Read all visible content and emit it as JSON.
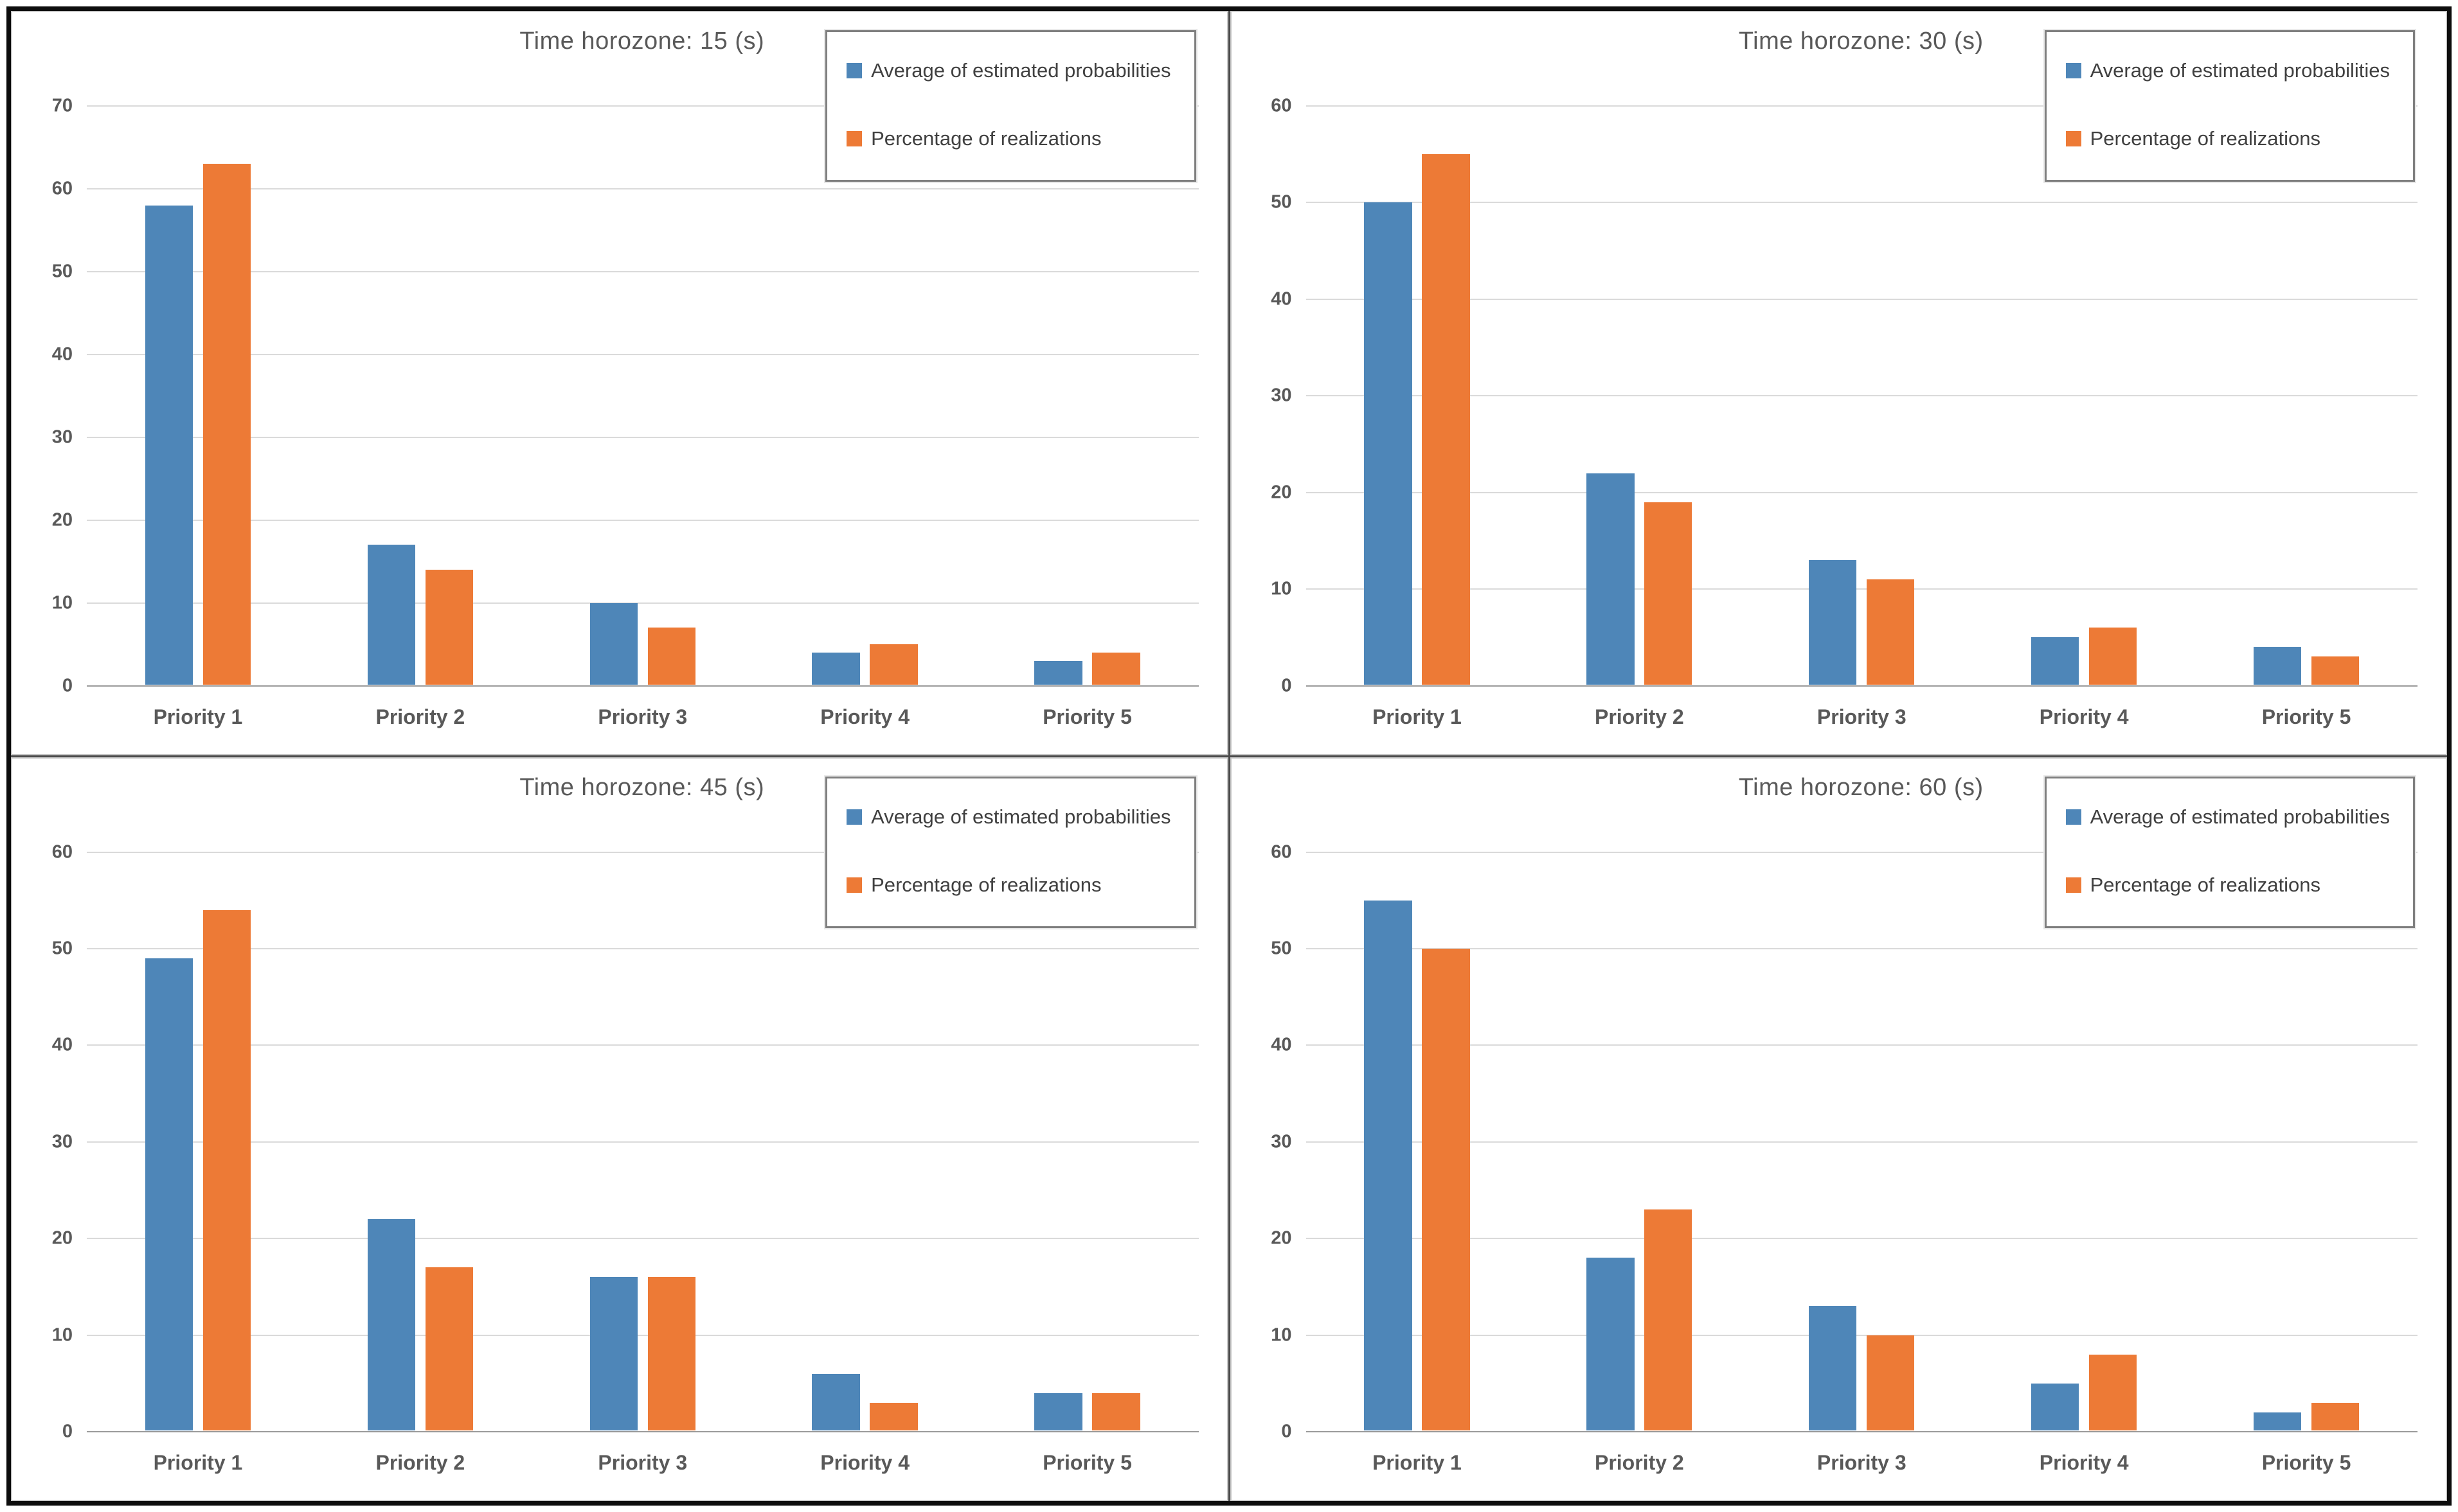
{
  "figure": {
    "series_colors": {
      "average": "#4E86B8",
      "percentage": "#ED7A36"
    },
    "text_color": "#595959",
    "gridline_color": "#dadada",
    "axis_color": "#9b9b9b"
  },
  "chart_data": [
    {
      "type": "bar",
      "title": "Time horozone: 15 (s)",
      "categories": [
        "Priority 1",
        "Priority 2",
        "Priority 3",
        "Priority 4",
        "Priority 5"
      ],
      "series": [
        {
          "name": "Average of estimated probabilities",
          "color": "#4E86B8",
          "values": [
            58,
            17,
            10,
            4,
            3
          ]
        },
        {
          "name": "Percentage of realizations",
          "color": "#ED7A36",
          "values": [
            63,
            14,
            7,
            5,
            4
          ]
        }
      ],
      "xlabel": "",
      "ylabel": "",
      "ylim": [
        0,
        70
      ],
      "ytick_step": 10,
      "grid": true,
      "legend_position": "top-right"
    },
    {
      "type": "bar",
      "title": "Time horozone: 30 (s)",
      "categories": [
        "Priority 1",
        "Priority 2",
        "Priority 3",
        "Priority 4",
        "Priority 5"
      ],
      "series": [
        {
          "name": "Average of estimated probabilities",
          "color": "#4E86B8",
          "values": [
            50,
            22,
            13,
            5,
            4
          ]
        },
        {
          "name": "Percentage of realizations",
          "color": "#ED7A36",
          "values": [
            55,
            19,
            11,
            6,
            3
          ]
        }
      ],
      "xlabel": "",
      "ylabel": "",
      "ylim": [
        0,
        60
      ],
      "ytick_step": 10,
      "grid": true,
      "legend_position": "top-right"
    },
    {
      "type": "bar",
      "title": "Time horozone: 45 (s)",
      "categories": [
        "Priority 1",
        "Priority 2",
        "Priority 3",
        "Priority 4",
        "Priority 5"
      ],
      "series": [
        {
          "name": "Average of estimated probabilities",
          "color": "#4E86B8",
          "values": [
            49,
            22,
            16,
            6,
            4
          ]
        },
        {
          "name": "Percentage of realizations",
          "color": "#ED7A36",
          "values": [
            54,
            17,
            16,
            3,
            4
          ]
        }
      ],
      "xlabel": "",
      "ylabel": "",
      "ylim": [
        0,
        60
      ],
      "ytick_step": 10,
      "grid": true,
      "legend_position": "top-right"
    },
    {
      "type": "bar",
      "title": "Time horozone: 60 (s)",
      "categories": [
        "Priority 1",
        "Priority 2",
        "Priority 3",
        "Priority 4",
        "Priority 5"
      ],
      "series": [
        {
          "name": "Average of estimated probabilities",
          "color": "#4E86B8",
          "values": [
            55,
            18,
            13,
            5,
            2
          ]
        },
        {
          "name": "Percentage of realizations",
          "color": "#ED7A36",
          "values": [
            50,
            23,
            10,
            8,
            3
          ]
        }
      ],
      "xlabel": "",
      "ylabel": "",
      "ylim": [
        0,
        60
      ],
      "ytick_step": 10,
      "grid": true,
      "legend_position": "top-right"
    }
  ]
}
